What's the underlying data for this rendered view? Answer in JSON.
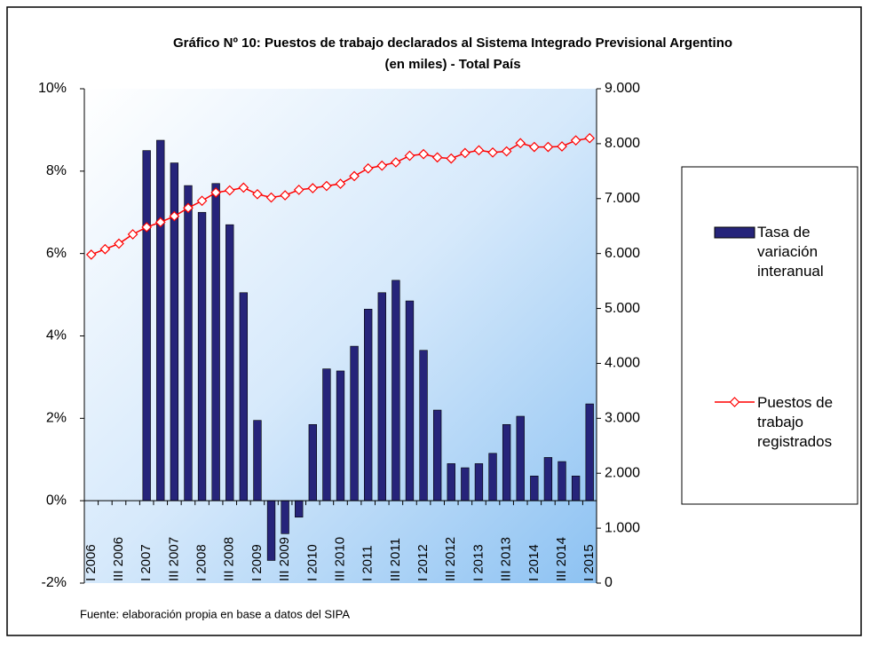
{
  "chart_data": {
    "type": "bar_line",
    "title": "Gráfico Nº 10: Puestos de trabajo declarados al Sistema Integrado Previsional Argentino",
    "subtitle": "(en miles) - Total País",
    "source": "Fuente: elaboración propia en base a datos del SIPA",
    "categories": [
      "I 2006",
      null,
      "III 2006",
      null,
      "I 2007",
      null,
      "III 2007",
      null,
      "I 2008",
      null,
      "III 2008",
      null,
      "I 2009",
      null,
      "III 2009",
      null,
      "I 2010",
      null,
      "III 2010",
      null,
      "I 2011",
      null,
      "III 2011",
      null,
      "I 2012",
      null,
      "III 2012",
      null,
      "I 2013",
      null,
      "III 2013",
      null,
      "I 2014",
      null,
      "III 2014",
      null,
      "I 2015"
    ],
    "series": [
      {
        "name": "Tasa de variación interanual",
        "color": "#26247a",
        "type": "bar",
        "values": [
          null,
          null,
          null,
          null,
          8.5,
          8.75,
          8.2,
          7.65,
          7.0,
          7.7,
          6.7,
          5.05,
          1.95,
          -1.45,
          -0.8,
          -0.4,
          1.85,
          3.2,
          3.15,
          3.75,
          4.65,
          5.05,
          5.35,
          4.85,
          3.65,
          2.2,
          0.9,
          0.8,
          0.9,
          1.15,
          1.85,
          2.05,
          0.6,
          1.05,
          0.95,
          0.6,
          2.35
        ]
      },
      {
        "name": "Puestos de trabajo registrados",
        "color": "#ff0000",
        "type": "line",
        "axis": "y2",
        "values": [
          5980,
          6080,
          6180,
          6350,
          6480,
          6570,
          6680,
          6830,
          6960,
          7110,
          7150,
          7200,
          7080,
          7020,
          7060,
          7160,
          7190,
          7230,
          7270,
          7410,
          7550,
          7600,
          7660,
          7780,
          7810,
          7750,
          7730,
          7830,
          7880,
          7840,
          7860,
          8010,
          7940,
          7940,
          7950,
          8060,
          8100
        ]
      }
    ],
    "ylim": [
      -2,
      10
    ],
    "yticks": [
      {
        "value": -2,
        "label": "-2%"
      },
      {
        "value": 0,
        "label": "0%"
      },
      {
        "value": 2,
        "label": "2%"
      },
      {
        "value": 4,
        "label": "4%"
      },
      {
        "value": 6,
        "label": "6%"
      },
      {
        "value": 8,
        "label": "8%"
      },
      {
        "value": 10,
        "label": "10%"
      }
    ],
    "y2lim": [
      0,
      9000
    ],
    "y2ticks": [
      0,
      {
        "value": 1000,
        "label": "1.000"
      },
      {
        "value": 2000,
        "label": "2.000"
      },
      {
        "value": 3000,
        "label": "3.000"
      },
      {
        "value": 4000,
        "label": "4.000"
      },
      {
        "value": 5000,
        "label": "5.000"
      },
      {
        "value": 6000,
        "label": "6.000"
      },
      {
        "value": 7000,
        "label": "7.000"
      },
      {
        "value": 8000,
        "label": "8.000"
      },
      {
        "value": 9000,
        "label": "9.000"
      }
    ],
    "legend": "right"
  }
}
